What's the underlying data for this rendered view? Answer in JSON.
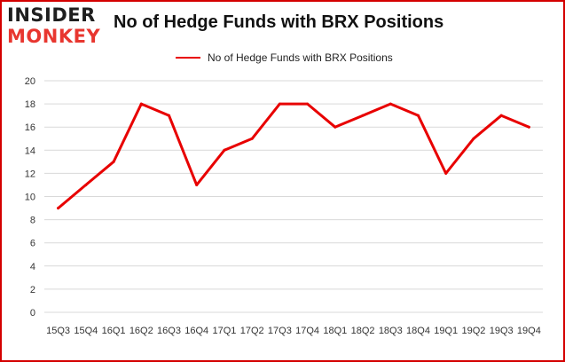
{
  "logo": {
    "line1": "INSIDER",
    "line2": "MONKEY"
  },
  "colors": {
    "line": "#e80000",
    "grid": "#d9d9d9",
    "frame": "#d40000",
    "logo_accent": "#e8362f"
  },
  "chart_data": {
    "type": "line",
    "title": "No of Hedge Funds with BRX Positions",
    "legend_position": "top-center",
    "grid": true,
    "xlabel": "",
    "ylabel": "",
    "ylim": [
      0,
      20
    ],
    "yticks": [
      0,
      2,
      4,
      6,
      8,
      10,
      12,
      14,
      16,
      18,
      20
    ],
    "categories": [
      "15Q3",
      "15Q4",
      "16Q1",
      "16Q2",
      "16Q3",
      "16Q4",
      "17Q1",
      "17Q2",
      "17Q3",
      "17Q4",
      "18Q1",
      "18Q2",
      "18Q3",
      "18Q4",
      "19Q1",
      "19Q2",
      "19Q3",
      "19Q4"
    ],
    "series": [
      {
        "name": "No of Hedge Funds with BRX Positions",
        "values": [
          9,
          11,
          13,
          18,
          17,
          11,
          14,
          15,
          18,
          18,
          16,
          17,
          18,
          17,
          12,
          15,
          17,
          16
        ]
      }
    ]
  }
}
